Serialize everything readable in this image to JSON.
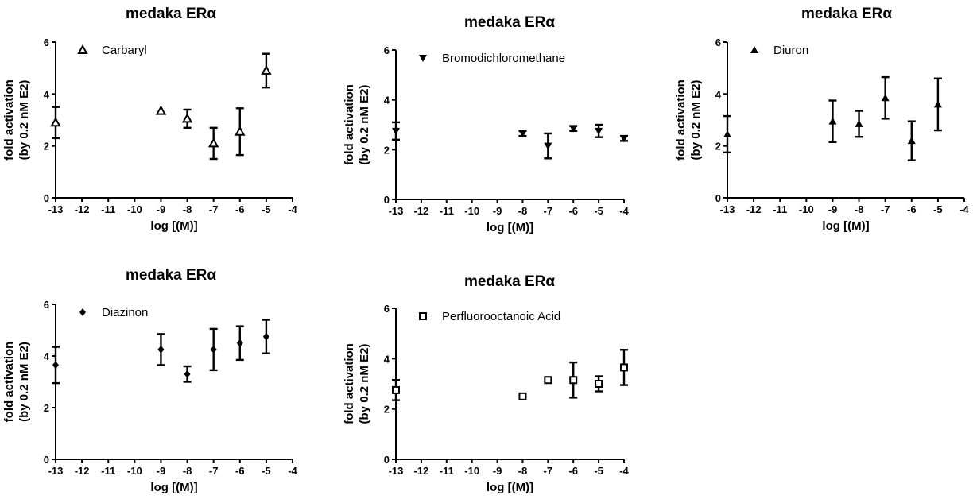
{
  "chart_data": [
    {
      "type": "scatter",
      "title": "medaka ERα",
      "ylabel_line1": "fold activation",
      "ylabel_line2": "(by 0.2 nM E2)",
      "xlabel": "log [(M)]",
      "xlim": [
        -13,
        -4
      ],
      "ylim": [
        0,
        6
      ],
      "xticks": [
        "-13",
        "-12",
        "-11",
        "-10",
        "-9",
        "-8",
        "-7",
        "-6",
        "-5",
        "-4"
      ],
      "yticks": [
        "0",
        "2",
        "4",
        "6"
      ],
      "legend_placement": "top-left",
      "series": [
        {
          "name": "Carbaryl",
          "marker": "triangle-open",
          "points": [
            {
              "x": -13,
              "y": 2.9,
              "err": 0.6
            },
            {
              "x": -9,
              "y": 3.35,
              "err": 0.05
            },
            {
              "x": -8,
              "y": 3.05,
              "err": 0.35
            },
            {
              "x": -7,
              "y": 2.1,
              "err": 0.6
            },
            {
              "x": -6,
              "y": 2.55,
              "err": 0.9
            },
            {
              "x": -5,
              "y": 4.9,
              "err": 0.65
            }
          ]
        }
      ]
    },
    {
      "type": "scatter",
      "title": "medaka ERα",
      "ylabel_line1": "fold activation",
      "ylabel_line2": "(by 0.2 nM E2)",
      "xlabel": "log [(M)]",
      "xlim": [
        -13,
        -4
      ],
      "ylim": [
        0,
        6
      ],
      "xticks": [
        "-13",
        "-12",
        "-11",
        "-10",
        "-9",
        "-8",
        "-7",
        "-6",
        "-5",
        "-4"
      ],
      "yticks": [
        "0",
        "2",
        "4",
        "6"
      ],
      "legend_placement": "top-left",
      "series": [
        {
          "name": "Bromodichloromethane",
          "marker": "triangle-down-filled",
          "points": [
            {
              "x": -13,
              "y": 2.75,
              "err": 0.35
            },
            {
              "x": -8,
              "y": 2.65,
              "err": 0.1
            },
            {
              "x": -7,
              "y": 2.15,
              "err": 0.5
            },
            {
              "x": -6,
              "y": 2.85,
              "err": 0.1
            },
            {
              "x": -5,
              "y": 2.75,
              "err": 0.25
            },
            {
              "x": -4,
              "y": 2.45,
              "err": 0.1
            }
          ]
        }
      ]
    },
    {
      "type": "scatter",
      "title": "medaka ERα",
      "ylabel_line1": "fold activation",
      "ylabel_line2": "(by 0.2 nM E2)",
      "xlabel": "log [(M)]",
      "xlim": [
        -13,
        -4
      ],
      "ylim": [
        0,
        6
      ],
      "xticks": [
        "-13",
        "-12",
        "-11",
        "-10",
        "-9",
        "-8",
        "-7",
        "-6",
        "-5",
        "-4"
      ],
      "yticks": [
        "0",
        "2",
        "4",
        "6"
      ],
      "legend_placement": "top-left",
      "series": [
        {
          "name": "Diuron",
          "marker": "triangle-filled",
          "points": [
            {
              "x": -13,
              "y": 2.45,
              "err": 0.7
            },
            {
              "x": -9,
              "y": 2.95,
              "err": 0.8
            },
            {
              "x": -8,
              "y": 2.85,
              "err": 0.5
            },
            {
              "x": -7,
              "y": 3.85,
              "err": 0.8
            },
            {
              "x": -6,
              "y": 2.2,
              "err": 0.75
            },
            {
              "x": -5,
              "y": 3.6,
              "err": 1.0
            }
          ]
        }
      ]
    },
    {
      "type": "scatter",
      "title": "medaka ERα",
      "ylabel_line1": "fold activation",
      "ylabel_line2": "(by 0.2 nM E2)",
      "xlabel": "log [(M)]",
      "xlim": [
        -13,
        -4
      ],
      "ylim": [
        0,
        6
      ],
      "xticks": [
        "-13",
        "-12",
        "-11",
        "-10",
        "-9",
        "-8",
        "-7",
        "-6",
        "-5",
        "-4"
      ],
      "yticks": [
        "0",
        "2",
        "4",
        "6"
      ],
      "legend_placement": "top-left",
      "series": [
        {
          "name": "Diazinon",
          "marker": "diamond-filled",
          "points": [
            {
              "x": -13,
              "y": 3.65,
              "err": 0.7
            },
            {
              "x": -9,
              "y": 4.25,
              "err": 0.6
            },
            {
              "x": -8,
              "y": 3.3,
              "err": 0.3
            },
            {
              "x": -7,
              "y": 4.25,
              "err": 0.8
            },
            {
              "x": -6,
              "y": 4.5,
              "err": 0.65
            },
            {
              "x": -5,
              "y": 4.75,
              "err": 0.65
            }
          ]
        }
      ]
    },
    {
      "type": "scatter",
      "title": "medaka ERα",
      "ylabel_line1": "fold activation",
      "ylabel_line2": "(by 0.2 nM E2)",
      "xlabel": "log [(M)]",
      "xlim": [
        -13,
        -4
      ],
      "ylim": [
        0,
        6
      ],
      "xticks": [
        "-13",
        "-12",
        "-11",
        "-10",
        "-9",
        "-8",
        "-7",
        "-6",
        "-5",
        "-4"
      ],
      "yticks": [
        "0",
        "2",
        "4",
        "6"
      ],
      "legend_placement": "top-left",
      "series": [
        {
          "name": "Perfluorooctanoic Acid",
          "marker": "square-open",
          "points": [
            {
              "x": -13,
              "y": 2.75,
              "err": 0.4
            },
            {
              "x": -8,
              "y": 2.5,
              "err": 0.05
            },
            {
              "x": -7,
              "y": 3.15,
              "err": 0.05
            },
            {
              "x": -6,
              "y": 3.15,
              "err": 0.7
            },
            {
              "x": -5,
              "y": 3.0,
              "err": 0.3
            },
            {
              "x": -4,
              "y": 3.65,
              "err": 0.7
            }
          ]
        }
      ]
    }
  ]
}
